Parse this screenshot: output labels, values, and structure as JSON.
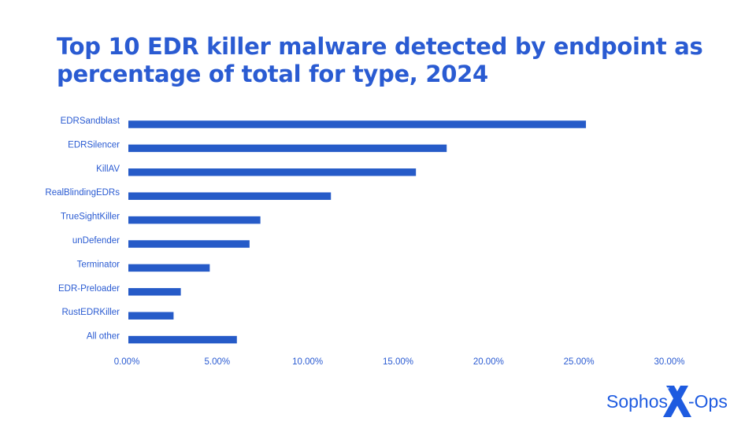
{
  "chart_data": {
    "type": "bar",
    "orientation": "horizontal",
    "title": "Top 10 EDR killer malware detected by endpoint as percentage of total for type, 2024",
    "categories": [
      "EDRSandblast",
      "EDRSilencer",
      "KillAV",
      "RealBlindingEDRs",
      "TrueSightKiller",
      "unDefender",
      "Terminator",
      "EDR-Preloader",
      "RustEDRKiller",
      "All other"
    ],
    "values": [
      25.3,
      17.6,
      15.9,
      11.2,
      7.3,
      6.7,
      4.5,
      2.9,
      2.5,
      6.0
    ],
    "unit": "%",
    "xlim": [
      0,
      30
    ],
    "xticks": [
      "0.00%",
      "5.00%",
      "10.00%",
      "15.00%",
      "20.00%",
      "25.00%",
      "30.00%"
    ],
    "grid": false,
    "legend": "none",
    "bar_color": "#265bc8"
  },
  "logo": {
    "left": "Sophos",
    "right": "-Ops",
    "mark": "X",
    "color": "#1e5be0"
  }
}
